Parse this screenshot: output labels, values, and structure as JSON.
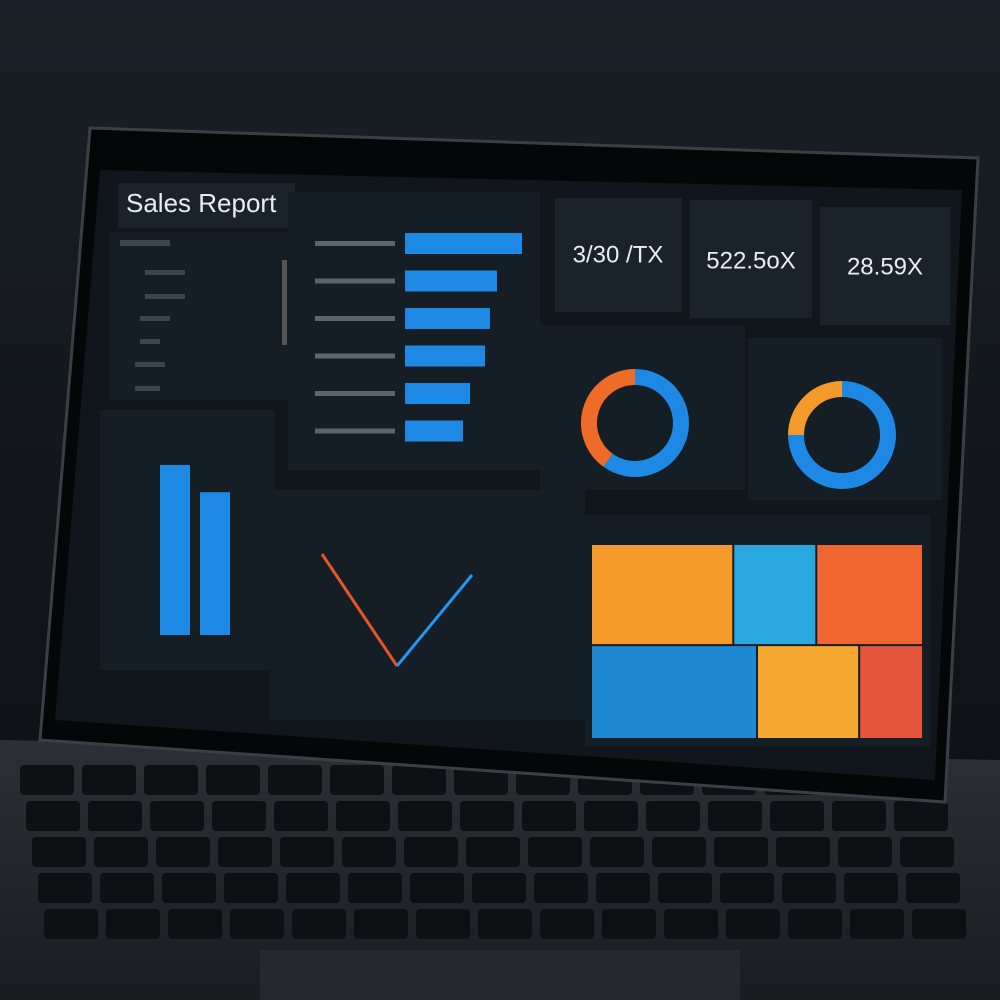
{
  "header": {
    "title": "Sales Report"
  },
  "kpis": [
    {
      "value": "3/30 /TX"
    },
    {
      "value": "522.5oX"
    },
    {
      "value": "28.59X"
    }
  ],
  "bar_chart": {
    "type": "bar",
    "orientation": "horizontal",
    "values": [
      117,
      92,
      85,
      80,
      65,
      58
    ],
    "xlim": [
      0,
      120
    ],
    "color": "#1e88e5"
  },
  "column_chart": {
    "type": "bar",
    "values": [
      100,
      84
    ],
    "ylim": [
      0,
      100
    ],
    "color": "#1e88e5"
  },
  "donut_1": {
    "type": "pie",
    "values": [
      60,
      40
    ],
    "colors": [
      "#1e88e5",
      "#ef6c28"
    ]
  },
  "donut_2": {
    "type": "pie",
    "values": [
      75,
      25
    ],
    "colors": [
      "#1e88e5",
      "#f39a2a"
    ]
  },
  "line_chart": {
    "type": "line",
    "ylim": [
      0,
      100
    ],
    "series": [
      {
        "color": "#e8542a",
        "values": [
          90,
          10,
          null
        ]
      },
      {
        "color": "#2196f3",
        "values": [
          null,
          10,
          75
        ]
      }
    ]
  },
  "treemap": {
    "type": "treemap",
    "values": [
      12,
      7,
      9,
      13,
      8,
      5
    ],
    "colors": [
      "#f39a2a",
      "#29a8e0",
      "#ef6530",
      "#1e88d0",
      "#f5a830",
      "#e4553a"
    ]
  }
}
